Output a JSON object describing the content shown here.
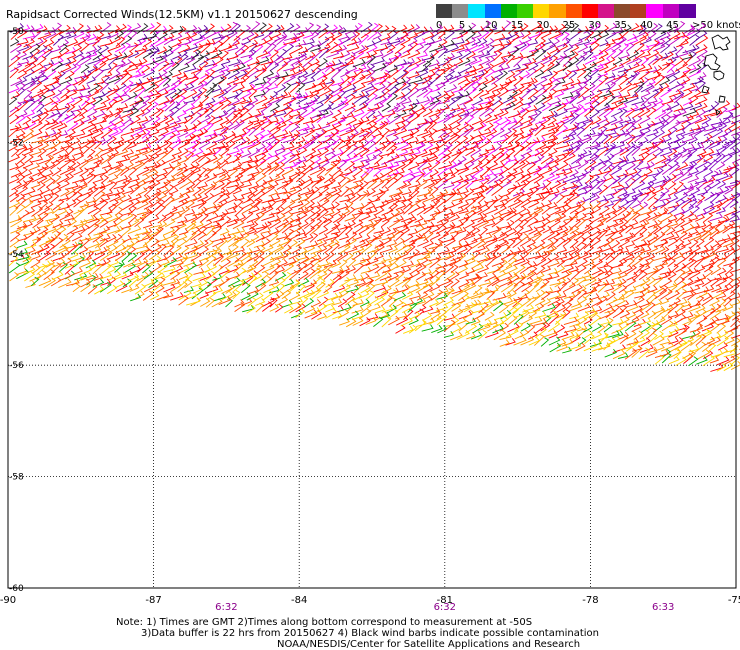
{
  "title": "Rapidsact Corrected Winds(12.5KM) v1.1 20150627 descending",
  "legend": {
    "labels": [
      "0",
      "5",
      "10",
      "15",
      "20",
      "25",
      "30",
      "35",
      "40",
      "45",
      ">50 knots"
    ],
    "colors": [
      "#404040",
      "#8c8c8c",
      "#00e5ff",
      "#0070ff",
      "#00b000",
      "#39d000",
      "#ffd700",
      "#ffa000",
      "#ff5000",
      "#ff0000",
      "#d4148a",
      "#8b4a2b",
      "#b04020",
      "#ff00ff",
      "#c000c0",
      "#6000a0"
    ]
  },
  "map": {
    "lat_labels": [
      "-50",
      "-52",
      "-54",
      "-56",
      "-58",
      "-60"
    ],
    "lon_labels": [
      "-90",
      "-87",
      "-84",
      "-81",
      "-78",
      "-75"
    ],
    "time_labels": [
      "6:32",
      "6:32",
      "6:33"
    ],
    "lat_range": [
      -60,
      -50
    ],
    "lon_range": [
      -90,
      -75
    ]
  },
  "notes": {
    "line1": "Note: 1) Times are GMT 2)Times along bottom correspond to measurement at -50S",
    "line2": "3)Data buffer is 22 hrs from 20150627 4) Black wind barbs indicate possible contamination",
    "line3": "NOAA/NESDIS/Center for Satellite Applications and Research"
  }
}
